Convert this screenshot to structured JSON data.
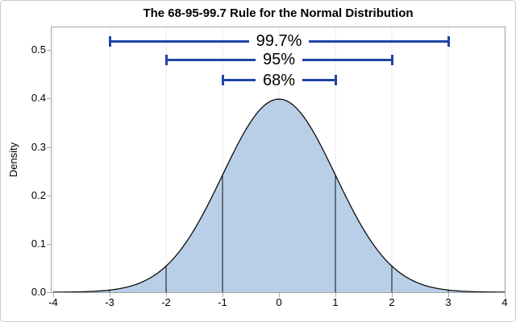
{
  "chart_data": {
    "type": "area",
    "title": "The 68-95-99.7 Rule for the Normal Distribution",
    "xlabel": "",
    "ylabel": "Density",
    "xlim": [
      -4,
      4
    ],
    "ylim": [
      0,
      0.547
    ],
    "x_ticks": [
      -4,
      -3,
      -2,
      -1,
      0,
      1,
      2,
      3,
      4
    ],
    "y_ticks": [
      0,
      0.1,
      0.2,
      0.3,
      0.4,
      0.5
    ],
    "grid": "vertical-only",
    "legend": "none",
    "curve": {
      "name": "standard-normal-pdf",
      "distribution": "normal",
      "mean": 0,
      "sd": 1,
      "points": [
        [
          -4,
          0.0001
        ],
        [
          -3.5,
          0.0009
        ],
        [
          -3,
          0.0044
        ],
        [
          -2.5,
          0.0175
        ],
        [
          -2,
          0.054
        ],
        [
          -1.5,
          0.1295
        ],
        [
          -1,
          0.242
        ],
        [
          -0.5,
          0.3521
        ],
        [
          0,
          0.3989
        ],
        [
          0.5,
          0.3521
        ],
        [
          1,
          0.242
        ],
        [
          1.5,
          0.1295
        ],
        [
          2,
          0.054
        ],
        [
          2.5,
          0.0175
        ],
        [
          3,
          0.0044
        ],
        [
          3.5,
          0.0009
        ],
        [
          4,
          0.0001
        ]
      ]
    },
    "drop_lines": [
      -3,
      -2,
      -1,
      1,
      2,
      3
    ],
    "brackets": [
      {
        "label": "99.7%",
        "from": -3,
        "to": 3,
        "y": 0.518
      },
      {
        "label": "95%",
        "from": -2,
        "to": 2,
        "y": 0.48
      },
      {
        "label": "68%",
        "from": -1,
        "to": 1,
        "y": 0.438
      }
    ],
    "colors": {
      "curve_fill": "#b9cfe7",
      "curve_stroke": "#0d0d0d",
      "drop_line": "#0d0d0d",
      "bracket": "#1e45a6",
      "gridline": "#e9ebed",
      "wall_border": "#a3a3a3",
      "tick": "#adadad",
      "frame_border": "#c9cdd1",
      "text": "#000000"
    }
  }
}
